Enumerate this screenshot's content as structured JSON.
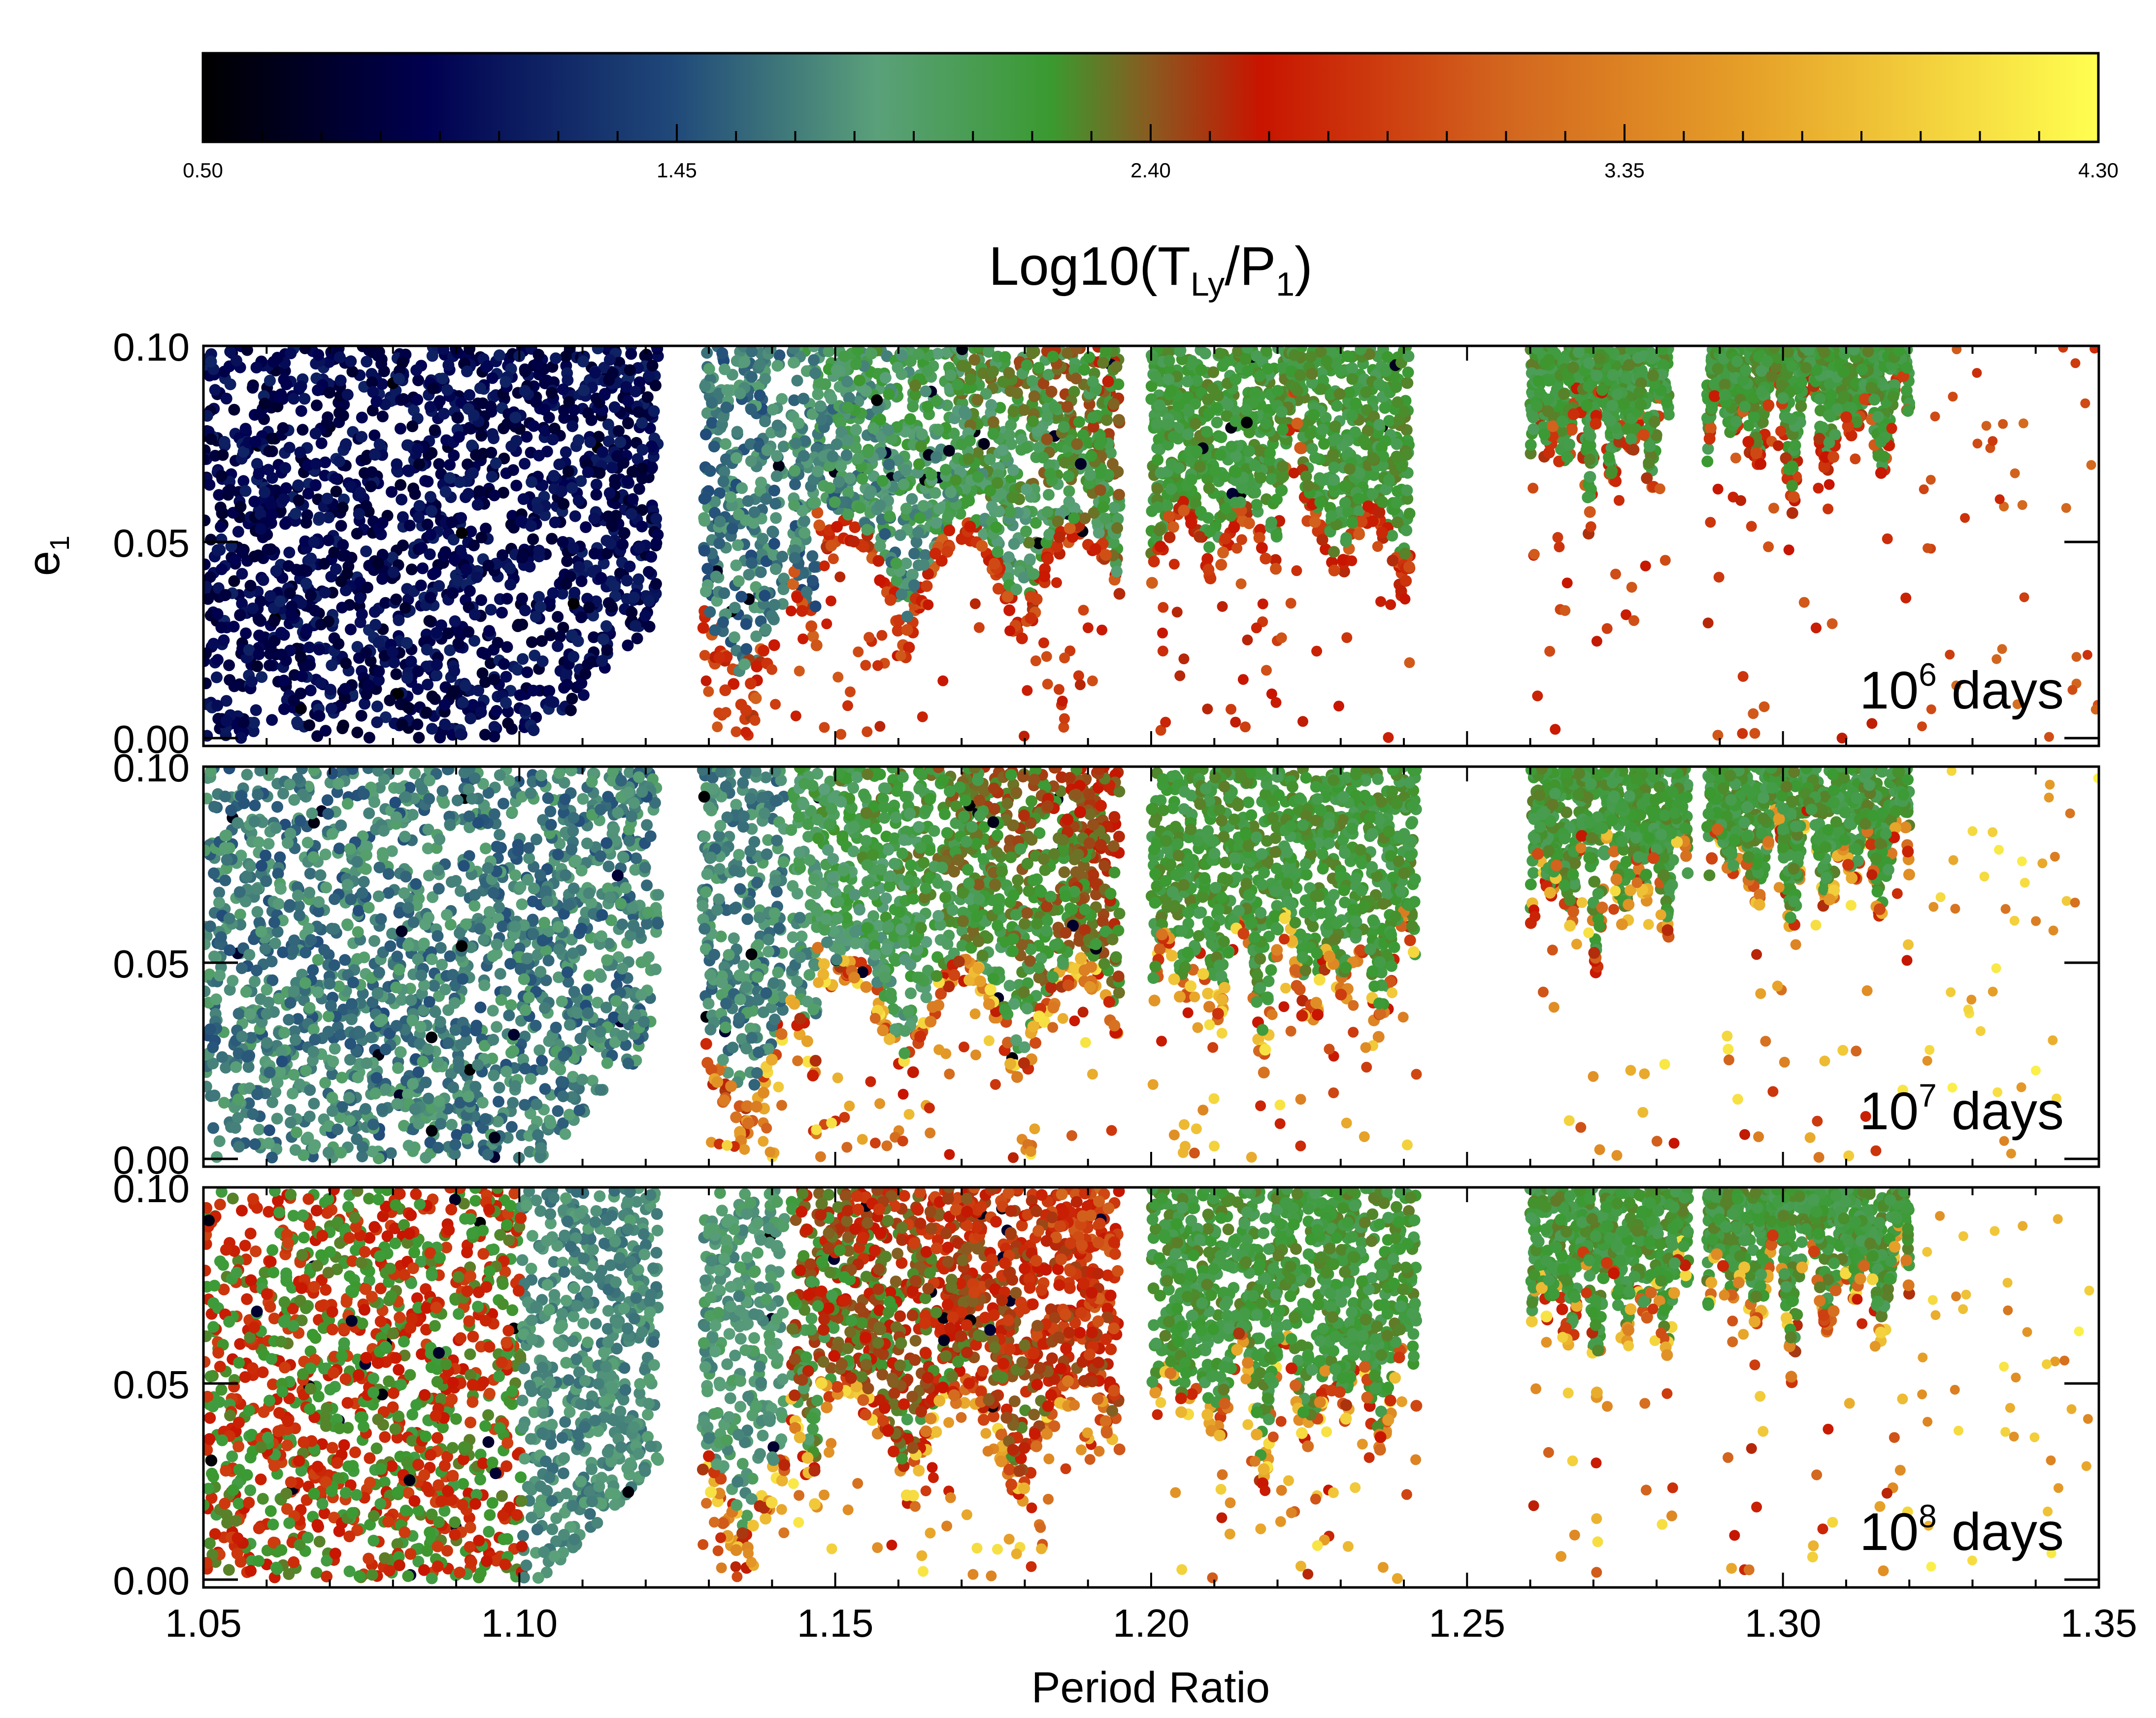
{
  "colorbar": {
    "label_main": "Log10(T",
    "label_sub1": "Ly",
    "label_mid": "/P",
    "label_sub2": "1",
    "label_end": ")",
    "range": [
      0.5,
      4.3
    ],
    "tick_labels": [
      "0.50",
      "1.45",
      "2.40",
      "3.35",
      "4.30"
    ],
    "stops": [
      {
        "v": 0.5,
        "color": "#000000"
      },
      {
        "v": 0.95,
        "color": "#000050"
      },
      {
        "v": 1.45,
        "color": "#204a7a"
      },
      {
        "v": 1.85,
        "color": "#5aa07a"
      },
      {
        "v": 2.2,
        "color": "#3a9a30"
      },
      {
        "v": 2.4,
        "color": "#8a5a20"
      },
      {
        "v": 2.62,
        "color": "#c81400"
      },
      {
        "v": 3.1,
        "color": "#d2641e"
      },
      {
        "v": 3.6,
        "color": "#e6a028"
      },
      {
        "v": 4.3,
        "color": "#ffff50"
      }
    ]
  },
  "chart_data": {
    "type": "scatter",
    "xlabel": "Period Ratio",
    "ylabel_main": "e",
    "ylabel_sub": "1",
    "xlim": [
      1.05,
      1.35
    ],
    "ylim": [
      -0.002,
      0.1
    ],
    "x_ticks": [
      "1.05",
      "1.10",
      "1.15",
      "1.20",
      "1.25",
      "1.30",
      "1.35"
    ],
    "y_ticks": [
      "0.00",
      "0.05",
      "0.10"
    ],
    "panels": [
      {
        "label_pre": "10",
        "label_exp": "6",
        "label_post": " days",
        "regions": [
          {
            "x0": 1.05,
            "x1": 1.122,
            "base": 0.0,
            "cmin": 0.5,
            "cmax": 1.2,
            "clip": "wedge"
          },
          {
            "x0": 1.129,
            "x1": 1.142,
            "base": 0.0,
            "cmin": 1.2,
            "cmax": 1.9,
            "clip": "v"
          },
          {
            "x0": 1.143,
            "x1": 1.195,
            "base": 0.02,
            "cmin": 1.1,
            "cmax": 2.0,
            "clip": "ramp"
          },
          {
            "x0": 1.2,
            "x1": 1.241,
            "base": 0.035,
            "cmin": 1.85,
            "cmax": 2.3,
            "clip": "notch"
          },
          {
            "x0": 1.26,
            "x1": 1.282,
            "base": 0.06,
            "cmin": 1.85,
            "cmax": 2.3,
            "clip": "none"
          },
          {
            "x0": 1.288,
            "x1": 1.32,
            "base": 0.065,
            "cmin": 1.85,
            "cmax": 2.3,
            "clip": "none"
          }
        ]
      },
      {
        "label_pre": "10",
        "label_exp": "7",
        "label_post": " days",
        "regions": [
          {
            "x0": 1.05,
            "x1": 1.122,
            "base": 0.0,
            "cmin": 1.2,
            "cmax": 1.95,
            "clip": "wedge"
          },
          {
            "x0": 1.129,
            "x1": 1.142,
            "base": 0.0,
            "cmin": 1.3,
            "cmax": 1.95,
            "clip": "v"
          },
          {
            "x0": 1.143,
            "x1": 1.195,
            "base": 0.015,
            "cmin": 1.4,
            "cmax": 2.1,
            "clip": "ramp"
          },
          {
            "x0": 1.2,
            "x1": 1.242,
            "base": 0.03,
            "cmin": 1.85,
            "cmax": 2.3,
            "clip": "none"
          },
          {
            "x0": 1.26,
            "x1": 1.285,
            "base": 0.055,
            "cmin": 1.85,
            "cmax": 2.3,
            "clip": "none"
          },
          {
            "x0": 1.288,
            "x1": 1.32,
            "base": 0.06,
            "cmin": 1.85,
            "cmax": 2.3,
            "clip": "none"
          }
        ]
      },
      {
        "label_pre": "10",
        "label_exp": "8",
        "label_post": " days",
        "regions": [
          {
            "x0": 1.05,
            "x1": 1.122,
            "base": 0.0,
            "cmin": 2.0,
            "cmax": 2.8,
            "clip": "mixed"
          },
          {
            "x0": 1.129,
            "x1": 1.142,
            "base": 0.0,
            "cmin": 1.5,
            "cmax": 2.0,
            "clip": "v"
          },
          {
            "x0": 1.143,
            "x1": 1.195,
            "base": 0.015,
            "cmin": 1.6,
            "cmax": 2.6,
            "clip": "ramp"
          },
          {
            "x0": 1.2,
            "x1": 1.242,
            "base": 0.03,
            "cmin": 1.85,
            "cmax": 2.3,
            "clip": "none"
          },
          {
            "x0": 1.26,
            "x1": 1.285,
            "base": 0.055,
            "cmin": 1.85,
            "cmax": 2.3,
            "clip": "none"
          },
          {
            "x0": 1.288,
            "x1": 1.32,
            "base": 0.06,
            "cmin": 1.85,
            "cmax": 2.3,
            "clip": "none"
          }
        ]
      }
    ]
  }
}
